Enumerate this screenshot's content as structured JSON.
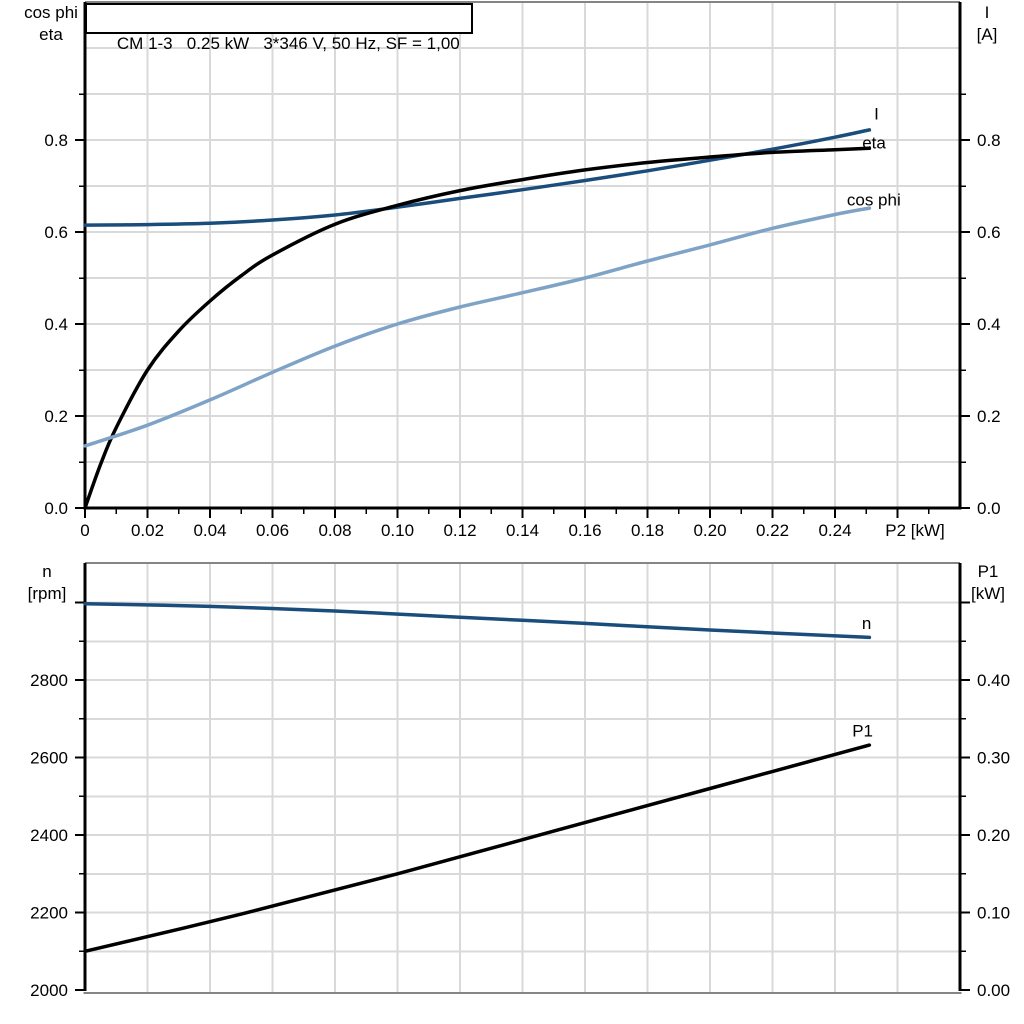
{
  "title": "CM 1-3   0.25 kW   3*346 V, 50 Hz, SF = 1,00",
  "corner_labels": {
    "top_left": [
      "cos phi",
      "eta"
    ],
    "top_right": [
      "I",
      "[A]"
    ],
    "bottom_left": [
      "n",
      "[rpm]"
    ],
    "bottom_right": [
      "P1",
      "[kW]"
    ]
  },
  "colors": {
    "dark_blue": "#1a4d7c",
    "light_blue": "#7ea3c6",
    "black": "#000000",
    "grid": "#d9d9d9",
    "border_gray": "#858585"
  },
  "chart_data": [
    {
      "type": "line",
      "panel": "top",
      "title": "CM 1-3   0.25 kW   3*346 V, 50 Hz, SF = 1,00",
      "xlabel": "P2 [kW]",
      "ylabel_left": "cos phi / eta",
      "ylabel_right": "I [A]",
      "xlim": [
        0,
        0.28
      ],
      "ylim": [
        0,
        1.1
      ],
      "grid": true,
      "legend_position": "curve-end-labels",
      "x_gridlines": [
        0.02,
        0.04,
        0.06,
        0.08,
        0.1,
        0.12,
        0.14,
        0.16,
        0.18,
        0.2,
        0.22,
        0.24,
        0.26
      ],
      "y_gridlines": [
        0.1,
        0.2,
        0.3,
        0.4,
        0.5,
        0.6,
        0.7,
        0.8,
        0.9,
        1.0
      ],
      "x_major_ticks": [
        0,
        0.02,
        0.04,
        0.06,
        0.08,
        0.1,
        0.12,
        0.14,
        0.16,
        0.18,
        0.2,
        0.22,
        0.24,
        0.26
      ],
      "x_tick_labels": [
        "0",
        "0.02",
        "0.04",
        "0.06",
        "0.08",
        "0.10",
        "0.12",
        "0.14",
        "0.16",
        "0.18",
        "0.20",
        "0.22",
        "0.24",
        ""
      ],
      "x_minor_ticks": [
        0.01,
        0.03,
        0.05,
        0.07,
        0.09,
        0.11,
        0.13,
        0.15,
        0.17,
        0.19,
        0.21,
        0.23,
        0.25,
        0.27
      ],
      "y_major_ticks": [
        0,
        0.2,
        0.4,
        0.6,
        0.8
      ],
      "y_tick_labels": [
        "0.0",
        "0.2",
        "0.4",
        "0.6",
        "0.8"
      ],
      "y_minor_ticks": [
        0.1,
        0.3,
        0.5,
        0.7,
        0.9
      ],
      "series": [
        {
          "name": "I",
          "axis": "left",
          "color_key": "dark_blue",
          "label_at": [
            0.2525,
            0.845
          ],
          "x": [
            0,
            0.02,
            0.04,
            0.06,
            0.08,
            0.1,
            0.12,
            0.14,
            0.16,
            0.18,
            0.2,
            0.22,
            0.24,
            0.251
          ],
          "y": [
            0.615,
            0.616,
            0.619,
            0.626,
            0.637,
            0.654,
            0.673,
            0.692,
            0.712,
            0.733,
            0.756,
            0.78,
            0.806,
            0.822
          ]
        },
        {
          "name": "eta",
          "axis": "left",
          "color_key": "black",
          "label_at": [
            0.2487,
            0.782
          ],
          "x": [
            0,
            0.005,
            0.01,
            0.02,
            0.03,
            0.04,
            0.05,
            0.06,
            0.08,
            0.1,
            0.12,
            0.14,
            0.16,
            0.18,
            0.2,
            0.22,
            0.24,
            0.251
          ],
          "y": [
            0,
            0.095,
            0.175,
            0.3,
            0.385,
            0.45,
            0.505,
            0.55,
            0.617,
            0.658,
            0.69,
            0.714,
            0.735,
            0.751,
            0.763,
            0.773,
            0.779,
            0.782
          ]
        },
        {
          "name": "cos phi",
          "axis": "left",
          "color_key": "light_blue",
          "label_at": [
            0.2438,
            0.658
          ],
          "x": [
            0,
            0.02,
            0.04,
            0.06,
            0.08,
            0.1,
            0.12,
            0.14,
            0.16,
            0.18,
            0.2,
            0.22,
            0.24,
            0.251
          ],
          "y": [
            0.135,
            0.18,
            0.235,
            0.295,
            0.352,
            0.4,
            0.437,
            0.468,
            0.5,
            0.537,
            0.572,
            0.608,
            0.638,
            0.652
          ]
        }
      ]
    },
    {
      "type": "line",
      "panel": "bottom",
      "xlabel": "P2 [kW]",
      "ylabel_left": "n [rpm]",
      "ylabel_right": "P1 [kW]",
      "xlim": [
        0,
        0.28
      ],
      "ylim_left": [
        2000,
        3102
      ],
      "ylim_right": [
        0,
        0.551
      ],
      "grid": true,
      "x_gridlines": [
        0.02,
        0.04,
        0.06,
        0.08,
        0.1,
        0.12,
        0.14,
        0.16,
        0.18,
        0.2,
        0.22,
        0.24,
        0.26
      ],
      "y_gridlines_left": [
        2100,
        2200,
        2300,
        2400,
        2500,
        2600,
        2700,
        2800,
        2900,
        3000
      ],
      "y_left_major_ticks": [
        2000,
        2200,
        2400,
        2600,
        2800,
        3000
      ],
      "y_left_tick_labels": [
        "2000",
        "2200",
        "2400",
        "2600",
        "2800",
        ""
      ],
      "y_left_minor_ticks": [
        2100,
        2300,
        2500,
        2700,
        2900
      ],
      "y_right_major_ticks": [
        0,
        0.1,
        0.2,
        0.3,
        0.4,
        0.5
      ],
      "y_right_tick_labels": [
        "0.00",
        "0.10",
        "0.20",
        "0.30",
        "0.40",
        ""
      ],
      "y_right_minor_ticks": [
        0.05,
        0.15,
        0.25,
        0.35,
        0.45
      ],
      "series": [
        {
          "name": "n",
          "axis": "left",
          "color_key": "dark_blue",
          "label_at": [
            0.2486,
            2932
          ],
          "x": [
            0,
            0.04,
            0.08,
            0.12,
            0.16,
            0.2,
            0.251
          ],
          "y": [
            2997,
            2990,
            2978,
            2962,
            2946,
            2929,
            2910
          ]
        },
        {
          "name": "P1",
          "axis": "right",
          "color_key": "black",
          "label_at": [
            0.2455,
            0.327
          ],
          "x": [
            0,
            0.05,
            0.1,
            0.15,
            0.2,
            0.251
          ],
          "y": [
            0.05,
            0.098,
            0.15,
            0.205,
            0.26,
            0.316
          ]
        }
      ]
    }
  ]
}
